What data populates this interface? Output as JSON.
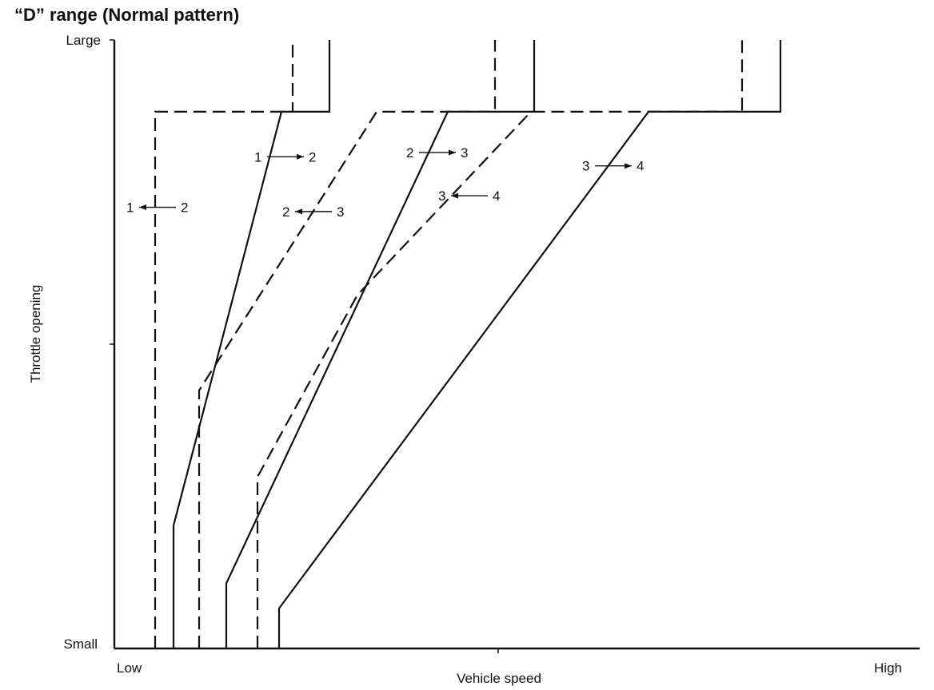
{
  "chart_data": {
    "type": "line",
    "title": "“D” range  (Normal pattern)",
    "xlabel": "Vehicle speed",
    "ylabel": "Throttle opening",
    "x_tick_labels": [
      "Low",
      "High"
    ],
    "y_tick_labels": [
      "Small",
      "Large"
    ],
    "xlim": [
      0,
      100
    ],
    "ylim": [
      0,
      100
    ],
    "grid": false,
    "series": [
      {
        "style": "dashed",
        "points": [
          [
            5.1,
            0
          ],
          [
            5.1,
            88.2
          ],
          [
            22.3,
            88.2
          ],
          [
            22.3,
            100
          ]
        ]
      },
      {
        "style": "solid",
        "points": [
          [
            7.4,
            0
          ],
          [
            7.4,
            20.2
          ],
          [
            20.9,
            88.2
          ],
          [
            26.9,
            88.2
          ],
          [
            26.9,
            100
          ]
        ]
      },
      {
        "style": "dashed",
        "points": [
          [
            10.6,
            0
          ],
          [
            10.6,
            42.4
          ],
          [
            32.8,
            88.2
          ],
          [
            47.6,
            88.2
          ],
          [
            47.6,
            100
          ]
        ]
      },
      {
        "style": "solid",
        "points": [
          [
            14.0,
            0
          ],
          [
            14.0,
            10.7
          ],
          [
            41.7,
            88.2
          ],
          [
            52.5,
            88.2
          ],
          [
            52.5,
            100
          ]
        ]
      },
      {
        "style": "dashed",
        "points": [
          [
            17.9,
            0
          ],
          [
            17.9,
            28.2
          ],
          [
            30.4,
            58.1
          ],
          [
            52.1,
            88.2
          ],
          [
            78.5,
            88.2
          ],
          [
            78.5,
            100
          ]
        ]
      },
      {
        "style": "solid",
        "points": [
          [
            20.6,
            0
          ],
          [
            20.6,
            6.6
          ],
          [
            66.8,
            88.2
          ],
          [
            83.3,
            88.2
          ],
          [
            83.3,
            100
          ]
        ]
      }
    ],
    "annotations": [
      {
        "text_from": "1",
        "text_to": "2",
        "direction": "right",
        "x": 17.5,
        "y": 80.8
      },
      {
        "text_from": "1",
        "text_to": "2",
        "direction": "left",
        "x": 1.5,
        "y": 72.5
      },
      {
        "text_from": "2",
        "text_to": "3",
        "direction": "left",
        "x": 21.0,
        "y": 71.8
      },
      {
        "text_from": "2",
        "text_to": "3",
        "direction": "right",
        "x": 36.5,
        "y": 81.5
      },
      {
        "text_from": "3",
        "text_to": "4",
        "direction": "left",
        "x": 40.5,
        "y": 74.4
      },
      {
        "text_from": "3",
        "text_to": "4",
        "direction": "right",
        "x": 58.5,
        "y": 79.3
      }
    ]
  }
}
